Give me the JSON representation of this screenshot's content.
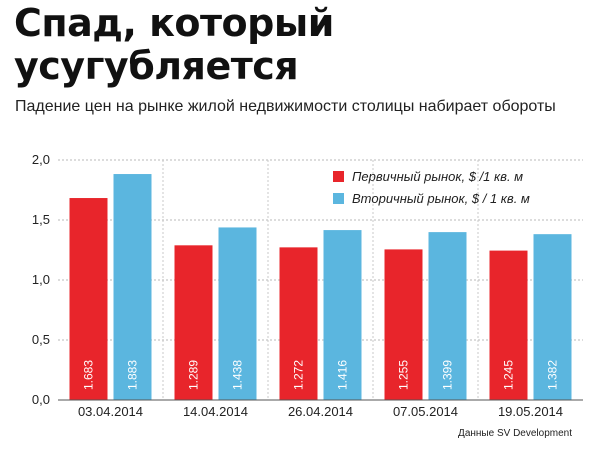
{
  "header": {
    "title_line1": "Спад, который",
    "title_line2": "усугубляется",
    "subtitle": "Падение цен на рынке жилой недвижимости столицы набирает обороты"
  },
  "source_note": "Данные SV Development",
  "chart_data": {
    "type": "bar",
    "title": "Спад, который усугубляется",
    "subtitle": "Падение цен на рынке жилой недвижимости столицы набирает обороты",
    "xlabel": "",
    "ylabel": "",
    "categories": [
      "03.04.2014",
      "14.04.2014",
      "26.04.2014",
      "07.05.2014",
      "19.05.2014"
    ],
    "series": [
      {
        "name": "Первичный рынок, $ /1 кв. м",
        "color": "#e8252b",
        "values": [
          1.683,
          1.289,
          1.272,
          1.255,
          1.245
        ],
        "labels": [
          "1.683",
          "1.289",
          "1.272",
          "1.255",
          "1.245"
        ]
      },
      {
        "name": "Вторичный рынок, $ / 1 кв. м",
        "color": "#5bb6df",
        "values": [
          1.883,
          1.438,
          1.416,
          1.399,
          1.382
        ],
        "labels": [
          "1.883",
          "1.438",
          "1.416",
          "1.399",
          "1.382"
        ]
      }
    ],
    "ylim": [
      0,
      2.0
    ],
    "yticks": [
      0,
      0.5,
      1.0,
      1.5,
      2.0
    ],
    "ytick_labels": [
      "0,0",
      "0,5",
      "1,0",
      "1,5",
      "2,0"
    ],
    "grid": true,
    "legend_position": "top-right"
  }
}
